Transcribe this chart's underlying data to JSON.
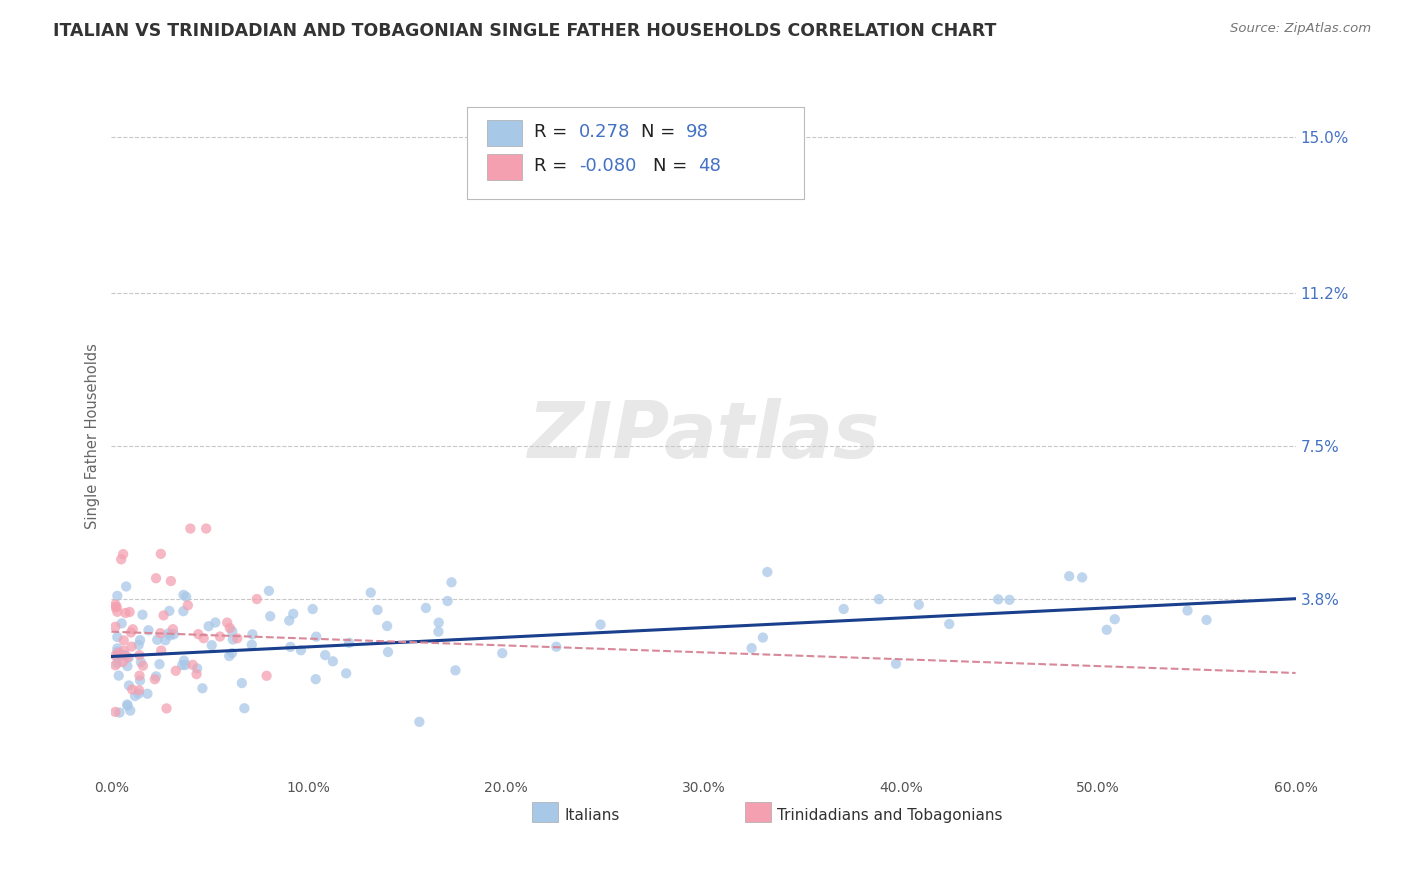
{
  "title": "ITALIAN VS TRINIDADIAN AND TOBAGONIAN SINGLE FATHER HOUSEHOLDS CORRELATION CHART",
  "source": "Source: ZipAtlas.com",
  "ylabel": "Single Father Households",
  "xlim": [
    0.0,
    0.6
  ],
  "ylim": [
    -0.005,
    0.16
  ],
  "yticks": [
    0.038,
    0.075,
    0.112,
    0.15
  ],
  "ytick_labels": [
    "3.8%",
    "7.5%",
    "11.2%",
    "15.0%"
  ],
  "xticks": [
    0.0,
    0.1,
    0.2,
    0.3,
    0.4,
    0.5,
    0.6
  ],
  "xtick_labels": [
    "0.0%",
    "10.0%",
    "20.0%",
    "30.0%",
    "40.0%",
    "50.0%",
    "60.0%"
  ],
  "blue_color": "#a8c8e8",
  "pink_color": "#f4a0b0",
  "blue_line_color": "#1a3f8c",
  "pink_line_color": "#d88898",
  "R_italian": 0.278,
  "N_italian": 98,
  "R_trinidadian": -0.08,
  "N_trinidadian": 48,
  "legend_label_italian": "Italians",
  "legend_label_trinidadian": "Trinidadians and Tobagonians",
  "watermark": "ZIPatlas",
  "background_color": "#ffffff",
  "grid_color": "#c8c8c8",
  "title_color": "#333333",
  "axis_label_color": "#666666",
  "ytick_color": "#4472c4",
  "source_color": "#777777",
  "blue_line_start_y": 0.024,
  "blue_line_end_y": 0.038,
  "pink_line_start_y": 0.03,
  "pink_line_end_y": 0.02
}
